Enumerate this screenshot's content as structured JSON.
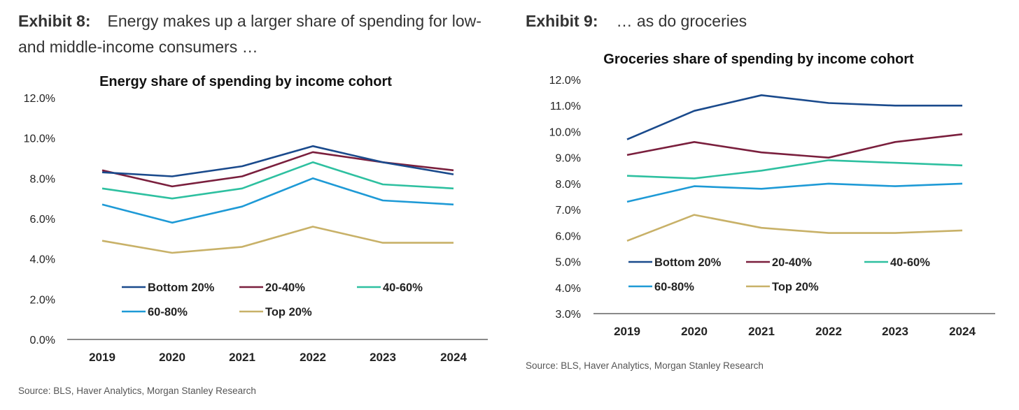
{
  "exhibits": [
    {
      "label": "Exhibit 8:",
      "text": "Energy makes up a larger share of spending for low- and middle-income consumers …",
      "source": "Source: BLS, Haver Analytics, Morgan Stanley Research"
    },
    {
      "label": "Exhibit 9:",
      "text": "… as do groceries",
      "source": "Source: BLS, Haver Analytics, Morgan Stanley Research"
    }
  ],
  "colors": {
    "Bottom 20%": "#1a4a8c",
    "20-40%": "#7a1f3d",
    "40-60%": "#2ec0a0",
    "60-80%": "#1e9ad6",
    "Top 20%": "#c8b168"
  },
  "chart_data": [
    {
      "type": "line",
      "title": "Energy share of spending by income cohort",
      "x": [
        "2019",
        "2020",
        "2021",
        "2022",
        "2023",
        "2024"
      ],
      "ylim": [
        0,
        12
      ],
      "yticks": [
        "0.0%",
        "2.0%",
        "4.0%",
        "6.0%",
        "8.0%",
        "10.0%",
        "12.0%"
      ],
      "grid": false,
      "legend": "inside-bottom",
      "series": [
        {
          "name": "Bottom 20%",
          "values": [
            8.3,
            8.1,
            8.6,
            9.6,
            8.8,
            8.2
          ]
        },
        {
          "name": "20-40%",
          "values": [
            8.4,
            7.6,
            8.1,
            9.3,
            8.8,
            8.4
          ]
        },
        {
          "name": "40-60%",
          "values": [
            7.5,
            7.0,
            7.5,
            8.8,
            7.7,
            7.5
          ]
        },
        {
          "name": "60-80%",
          "values": [
            6.7,
            5.8,
            6.6,
            8.0,
            6.9,
            6.7
          ]
        },
        {
          "name": "Top 20%",
          "values": [
            4.9,
            4.3,
            4.6,
            5.6,
            4.8,
            4.8
          ]
        }
      ]
    },
    {
      "type": "line",
      "title": "Groceries share of spending by income cohort",
      "x": [
        "2019",
        "2020",
        "2021",
        "2022",
        "2023",
        "2024"
      ],
      "ylim": [
        3,
        12
      ],
      "yticks": [
        "3.0%",
        "4.0%",
        "5.0%",
        "6.0%",
        "7.0%",
        "8.0%",
        "9.0%",
        "10.0%",
        "11.0%",
        "12.0%"
      ],
      "grid": false,
      "legend": "inside-bottom",
      "series": [
        {
          "name": "Bottom 20%",
          "values": [
            9.7,
            10.8,
            11.4,
            11.1,
            11.0,
            11.0
          ]
        },
        {
          "name": "20-40%",
          "values": [
            9.1,
            9.6,
            9.2,
            9.0,
            9.6,
            9.9
          ]
        },
        {
          "name": "40-60%",
          "values": [
            8.3,
            8.2,
            8.5,
            8.9,
            8.8,
            8.7
          ]
        },
        {
          "name": "60-80%",
          "values": [
            7.3,
            7.9,
            7.8,
            8.0,
            7.9,
            8.0
          ]
        },
        {
          "name": "Top 20%",
          "values": [
            5.8,
            6.8,
            6.3,
            6.1,
            6.1,
            6.2
          ]
        }
      ]
    }
  ]
}
